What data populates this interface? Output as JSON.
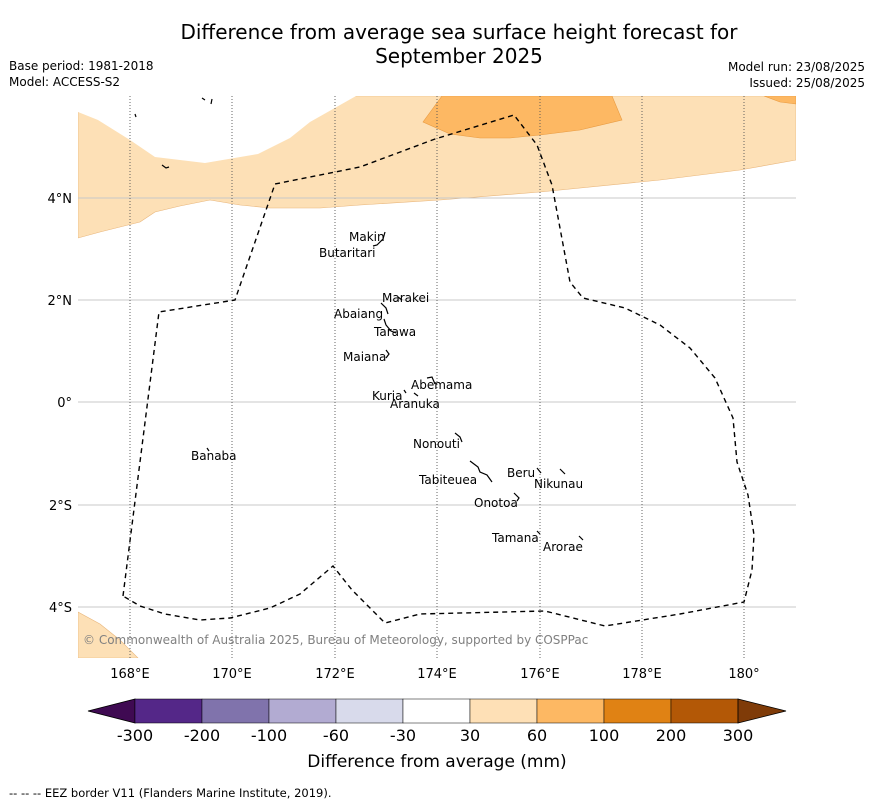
{
  "header": {
    "title_line1": "Difference from average sea surface height forecast for",
    "title_line2": "September 2025",
    "base_period": "Base period: 1981-2018",
    "model": "Model: ACCESS-S2",
    "model_run": "Model run: 23/08/2025",
    "issued": "Issued: 25/08/2025"
  },
  "map": {
    "copyright": "© Commonwealth of Australia 2025, Bureau of Meteorology, supported by COSPPac",
    "lon_ticks": [
      "168°E",
      "170°E",
      "172°E",
      "174°E",
      "176°E",
      "178°E",
      "180°"
    ],
    "lat_ticks": [
      "4°N",
      "2°N",
      "0°",
      "2°S",
      "4°S"
    ],
    "islands": [
      {
        "name": "Makin"
      },
      {
        "name": "Butaritari"
      },
      {
        "name": "Marakei"
      },
      {
        "name": "Abaiang"
      },
      {
        "name": "Tarawa"
      },
      {
        "name": "Maiana"
      },
      {
        "name": "Abemama"
      },
      {
        "name": "Kuria"
      },
      {
        "name": "Aranuka"
      },
      {
        "name": "Nonouti"
      },
      {
        "name": "Banaba"
      },
      {
        "name": "Beru"
      },
      {
        "name": "Tabiteuea"
      },
      {
        "name": "Nikunau"
      },
      {
        "name": "Onotoa"
      },
      {
        "name": "Tamana"
      },
      {
        "name": "Arorae"
      }
    ],
    "colors": {
      "light_orange": "#fde0b6",
      "mid_orange": "#fdb863"
    }
  },
  "colorbar": {
    "tick_labels": [
      "-300",
      "-200",
      "-100",
      "-60",
      "-30",
      "30",
      "60",
      "100",
      "200",
      "300"
    ],
    "label": "Difference from average (mm)",
    "colors": [
      "#3f0a52",
      "#542788",
      "#8073ac",
      "#b2abd2",
      "#d8daeb",
      "#ffffff",
      "#fee0b6",
      "#fdb863",
      "#e08214",
      "#b35806",
      "#7f3b08"
    ]
  },
  "footer": {
    "eez_note": "--  --  -- EEZ border V11 (Flanders Marine Institute, 2019)."
  }
}
